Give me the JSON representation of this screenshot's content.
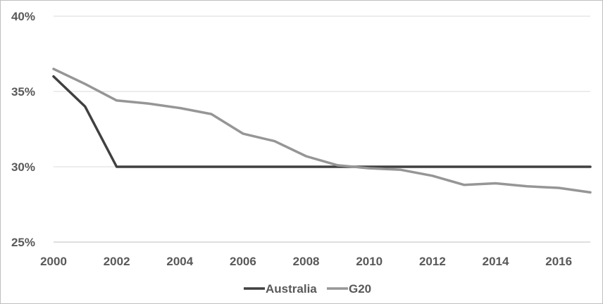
{
  "chart_data": {
    "type": "line",
    "title": "",
    "xlabel": "",
    "ylabel": "",
    "x": [
      2000,
      2001,
      2002,
      2003,
      2004,
      2005,
      2006,
      2007,
      2008,
      2009,
      2010,
      2011,
      2012,
      2013,
      2014,
      2015,
      2016,
      2017
    ],
    "x_ticks": [
      "2000",
      "2002",
      "2004",
      "2006",
      "2008",
      "2010",
      "2012",
      "2014",
      "2016"
    ],
    "x_tick_values": [
      2000,
      2002,
      2004,
      2006,
      2008,
      2010,
      2012,
      2014,
      2016
    ],
    "xlim": [
      2000,
      2017
    ],
    "y_ticks": [
      "25%",
      "30%",
      "35%",
      "40%"
    ],
    "y_tick_values": [
      25,
      30,
      35,
      40
    ],
    "ylim": [
      25,
      40
    ],
    "grid": "horizontal",
    "legend_position": "bottom",
    "series": [
      {
        "name": "Australia",
        "color": "#404040",
        "values": [
          36.0,
          34.0,
          30.0,
          30.0,
          30.0,
          30.0,
          30.0,
          30.0,
          30.0,
          30.0,
          30.0,
          30.0,
          30.0,
          30.0,
          30.0,
          30.0,
          30.0,
          30.0
        ]
      },
      {
        "name": "G20",
        "color": "#969696",
        "values": [
          36.5,
          35.5,
          34.4,
          34.2,
          33.9,
          33.5,
          32.2,
          31.7,
          30.7,
          30.1,
          29.9,
          29.8,
          29.4,
          28.8,
          28.9,
          28.7,
          28.6,
          28.3
        ]
      }
    ]
  }
}
